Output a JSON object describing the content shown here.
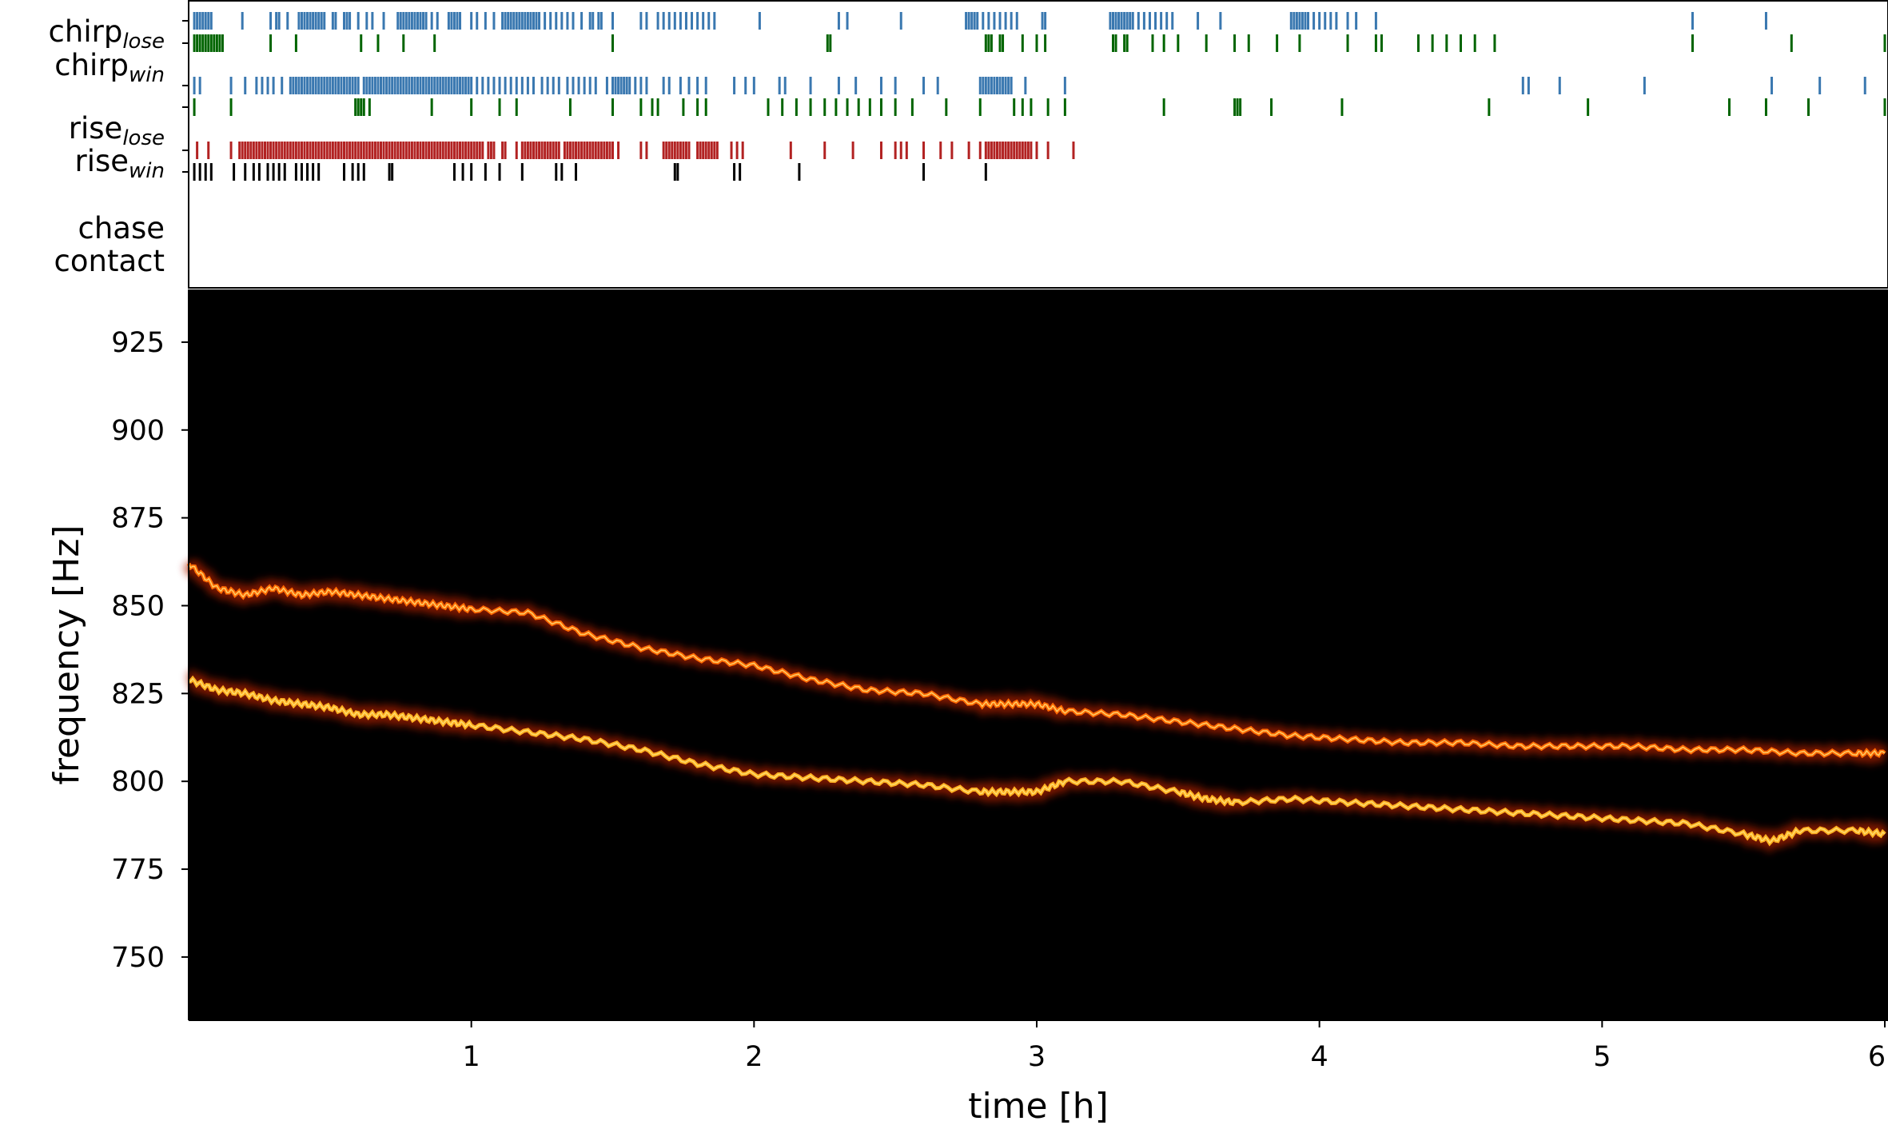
{
  "chart_data": [
    {
      "type": "event-raster",
      "xlim": [
        0,
        6
      ],
      "colors": {
        "chirp_lose": "#3a78b0",
        "chirp_win": "#006400",
        "rise_lose": "#3a78b0",
        "rise_win": "#006400",
        "chase": "#b22222",
        "contact": "#000000"
      },
      "rows": [
        {
          "key": "chirp_lose",
          "label": "chirp",
          "sub": "lose",
          "events": [
            0.02,
            0.03,
            0.04,
            0.05,
            0.06,
            0.07,
            0.08,
            0.19,
            0.29,
            0.31,
            0.32,
            0.35,
            0.39,
            0.4,
            0.41,
            0.42,
            0.43,
            0.44,
            0.45,
            0.46,
            0.47,
            0.48,
            0.51,
            0.52,
            0.55,
            0.56,
            0.57,
            0.6,
            0.63,
            0.65,
            0.69,
            0.74,
            0.75,
            0.76,
            0.77,
            0.78,
            0.79,
            0.8,
            0.81,
            0.82,
            0.83,
            0.84,
            0.86,
            0.88,
            0.92,
            0.93,
            0.94,
            0.95,
            0.96,
            1.0,
            1.02,
            1.05,
            1.08,
            1.11,
            1.12,
            1.13,
            1.14,
            1.15,
            1.16,
            1.17,
            1.18,
            1.19,
            1.2,
            1.21,
            1.22,
            1.23,
            1.24,
            1.26,
            1.28,
            1.3,
            1.32,
            1.34,
            1.36,
            1.39,
            1.42,
            1.43,
            1.45,
            1.46,
            1.5,
            1.6,
            1.62,
            1.66,
            1.68,
            1.7,
            1.72,
            1.74,
            1.76,
            1.78,
            1.8,
            1.82,
            1.84,
            1.86,
            2.02,
            2.3,
            2.33,
            2.52,
            2.75,
            2.76,
            2.77,
            2.78,
            2.79,
            2.81,
            2.83,
            2.85,
            2.87,
            2.89,
            2.91,
            2.93,
            3.02,
            3.03,
            3.26,
            3.27,
            3.28,
            3.29,
            3.3,
            3.31,
            3.32,
            3.33,
            3.34,
            3.36,
            3.38,
            3.4,
            3.42,
            3.44,
            3.46,
            3.48,
            3.57,
            3.65,
            3.9,
            3.91,
            3.92,
            3.93,
            3.94,
            3.95,
            3.96,
            3.98,
            4.0,
            4.02,
            4.04,
            4.06,
            4.1,
            4.13,
            4.2,
            5.32,
            5.58
          ]
        },
        {
          "key": "chirp_win",
          "label": "chirp",
          "sub": "win",
          "events": [
            0.02,
            0.03,
            0.04,
            0.05,
            0.06,
            0.07,
            0.08,
            0.09,
            0.1,
            0.11,
            0.12,
            0.29,
            0.38,
            0.61,
            0.67,
            0.76,
            0.87,
            1.5,
            2.26,
            2.27,
            2.82,
            2.83,
            2.84,
            2.87,
            2.88,
            2.95,
            3.0,
            3.03,
            3.27,
            3.28,
            3.31,
            3.32,
            3.41,
            3.45,
            3.5,
            3.6,
            3.7,
            3.75,
            3.85,
            3.93,
            4.1,
            4.2,
            4.22,
            4.35,
            4.4,
            4.45,
            4.5,
            4.55,
            4.62,
            5.32,
            5.67,
            6.0
          ]
        },
        {
          "key": "rise_lose",
          "label": "rise",
          "sub": "lose",
          "events": [
            0.02,
            0.04,
            0.15,
            0.2,
            0.24,
            0.26,
            0.28,
            0.3,
            0.33,
            0.36,
            0.37,
            0.38,
            0.39,
            0.4,
            0.41,
            0.42,
            0.43,
            0.44,
            0.45,
            0.46,
            0.47,
            0.48,
            0.49,
            0.5,
            0.51,
            0.52,
            0.53,
            0.54,
            0.55,
            0.56,
            0.57,
            0.58,
            0.59,
            0.6,
            0.62,
            0.63,
            0.64,
            0.65,
            0.66,
            0.67,
            0.68,
            0.69,
            0.7,
            0.71,
            0.72,
            0.73,
            0.74,
            0.75,
            0.76,
            0.77,
            0.78,
            0.79,
            0.8,
            0.81,
            0.82,
            0.83,
            0.84,
            0.85,
            0.86,
            0.87,
            0.88,
            0.89,
            0.9,
            0.91,
            0.92,
            0.93,
            0.94,
            0.95,
            0.96,
            0.97,
            0.98,
            0.99,
            1.0,
            1.02,
            1.04,
            1.06,
            1.08,
            1.1,
            1.12,
            1.14,
            1.16,
            1.18,
            1.2,
            1.22,
            1.25,
            1.27,
            1.29,
            1.31,
            1.34,
            1.36,
            1.38,
            1.4,
            1.42,
            1.44,
            1.48,
            1.5,
            1.51,
            1.52,
            1.53,
            1.54,
            1.55,
            1.56,
            1.58,
            1.6,
            1.62,
            1.68,
            1.7,
            1.74,
            1.77,
            1.8,
            1.83,
            1.93,
            1.97,
            2.0,
            2.09,
            2.11,
            2.2,
            2.3,
            2.36,
            2.45,
            2.5,
            2.6,
            2.65,
            2.8,
            2.81,
            2.82,
            2.83,
            2.84,
            2.85,
            2.86,
            2.87,
            2.88,
            2.89,
            2.9,
            2.91,
            2.96,
            3.1,
            4.72,
            4.74,
            4.85,
            5.15,
            5.6,
            5.77,
            5.93
          ]
        },
        {
          "key": "rise_win",
          "label": "rise",
          "sub": "win",
          "events": [
            0.02,
            0.15,
            0.59,
            0.6,
            0.61,
            0.62,
            0.64,
            0.86,
            1.0,
            1.1,
            1.16,
            1.35,
            1.5,
            1.6,
            1.64,
            1.66,
            1.75,
            1.8,
            1.83,
            2.05,
            2.1,
            2.15,
            2.2,
            2.25,
            2.29,
            2.33,
            2.37,
            2.41,
            2.45,
            2.5,
            2.56,
            2.68,
            2.8,
            2.92,
            2.95,
            2.98,
            3.04,
            3.1,
            3.45,
            3.7,
            3.71,
            3.72,
            3.83,
            4.08,
            4.6,
            4.95,
            5.45,
            5.58,
            5.73,
            6.0
          ]
        },
        {
          "key": "chase",
          "label": "chase",
          "sub": "",
          "events": [
            0.03,
            0.07,
            0.15,
            0.18,
            0.19,
            0.2,
            0.21,
            0.22,
            0.23,
            0.24,
            0.25,
            0.26,
            0.27,
            0.28,
            0.29,
            0.3,
            0.31,
            0.32,
            0.33,
            0.34,
            0.35,
            0.36,
            0.37,
            0.38,
            0.39,
            0.4,
            0.41,
            0.42,
            0.43,
            0.44,
            0.45,
            0.46,
            0.47,
            0.48,
            0.49,
            0.5,
            0.51,
            0.52,
            0.53,
            0.54,
            0.55,
            0.56,
            0.57,
            0.58,
            0.59,
            0.6,
            0.61,
            0.62,
            0.63,
            0.64,
            0.65,
            0.66,
            0.67,
            0.68,
            0.69,
            0.7,
            0.71,
            0.72,
            0.73,
            0.74,
            0.75,
            0.76,
            0.77,
            0.78,
            0.79,
            0.8,
            0.81,
            0.82,
            0.83,
            0.84,
            0.85,
            0.86,
            0.87,
            0.88,
            0.89,
            0.9,
            0.91,
            0.92,
            0.93,
            0.94,
            0.95,
            0.96,
            0.97,
            0.98,
            0.99,
            1.0,
            1.01,
            1.02,
            1.03,
            1.04,
            1.06,
            1.07,
            1.08,
            1.11,
            1.12,
            1.16,
            1.18,
            1.19,
            1.2,
            1.21,
            1.22,
            1.23,
            1.24,
            1.25,
            1.26,
            1.27,
            1.28,
            1.29,
            1.3,
            1.31,
            1.33,
            1.34,
            1.35,
            1.36,
            1.37,
            1.38,
            1.39,
            1.4,
            1.41,
            1.42,
            1.43,
            1.44,
            1.45,
            1.46,
            1.47,
            1.48,
            1.49,
            1.5,
            1.52,
            1.6,
            1.62,
            1.68,
            1.69,
            1.7,
            1.71,
            1.72,
            1.73,
            1.74,
            1.75,
            1.76,
            1.77,
            1.8,
            1.81,
            1.82,
            1.83,
            1.84,
            1.85,
            1.86,
            1.87,
            1.92,
            1.94,
            1.96,
            2.13,
            2.25,
            2.35,
            2.45,
            2.5,
            2.52,
            2.54,
            2.6,
            2.66,
            2.7,
            2.76,
            2.8,
            2.82,
            2.83,
            2.84,
            2.85,
            2.86,
            2.87,
            2.88,
            2.89,
            2.9,
            2.91,
            2.92,
            2.93,
            2.94,
            2.95,
            2.96,
            2.97,
            2.98,
            3.0,
            3.04,
            3.13
          ]
        },
        {
          "key": "contact",
          "label": "contact",
          "sub": "",
          "events": [
            0.02,
            0.04,
            0.06,
            0.08,
            0.16,
            0.2,
            0.23,
            0.25,
            0.28,
            0.3,
            0.32,
            0.34,
            0.38,
            0.4,
            0.42,
            0.44,
            0.46,
            0.55,
            0.58,
            0.6,
            0.62,
            0.71,
            0.72,
            0.94,
            0.97,
            1.0,
            1.05,
            1.1,
            1.18,
            1.3,
            1.32,
            1.37,
            1.72,
            1.73,
            1.93,
            1.95,
            2.16,
            2.6,
            2.82
          ]
        }
      ]
    },
    {
      "type": "heatmap",
      "xlabel": "time [h]",
      "ylabel": "frequency [Hz]",
      "xlim": [
        0,
        6
      ],
      "ylim": [
        732,
        940
      ],
      "xticks": [
        "1",
        "2",
        "3",
        "4",
        "5",
        "6"
      ],
      "xtick_values": [
        1,
        2,
        3,
        4,
        5,
        6
      ],
      "yticks": [
        "750",
        "775",
        "800",
        "825",
        "850",
        "875",
        "900",
        "925"
      ],
      "ytick_values": [
        750,
        775,
        800,
        825,
        850,
        875,
        900,
        925
      ],
      "background": "#000000",
      "colormap": [
        "#5a0000",
        "#b22200",
        "#ff6a00",
        "#ffb020",
        "#ffe680"
      ],
      "series": [
        {
          "x": [
            0.0,
            0.1,
            0.2,
            0.3,
            0.4,
            0.5,
            0.6,
            0.7,
            0.8,
            0.9,
            1.0,
            1.2,
            1.4,
            1.6,
            1.8,
            2.0,
            2.2,
            2.4,
            2.6,
            2.8,
            2.9,
            3.0,
            3.1,
            3.3,
            3.5,
            3.7,
            3.9,
            4.1,
            4.3,
            4.5,
            4.7,
            4.9,
            5.1,
            5.3,
            5.5,
            5.7,
            5.9,
            6.0
          ],
          "y": [
            862,
            855,
            853,
            855,
            853,
            854,
            853,
            852,
            851,
            850,
            849,
            848,
            842,
            838,
            835,
            833,
            829,
            826,
            825,
            822,
            822,
            822,
            820,
            819,
            817,
            815,
            813,
            812,
            811,
            811,
            810,
            810,
            810,
            809,
            809,
            808,
            808,
            808
          ]
        },
        {
          "x": [
            0.0,
            0.1,
            0.2,
            0.3,
            0.4,
            0.5,
            0.6,
            0.7,
            0.8,
            0.9,
            1.0,
            1.2,
            1.4,
            1.6,
            1.8,
            2.0,
            2.2,
            2.4,
            2.6,
            2.8,
            2.9,
            3.0,
            3.1,
            3.3,
            3.5,
            3.6,
            3.7,
            3.9,
            4.1,
            4.3,
            4.5,
            4.7,
            4.9,
            5.1,
            5.3,
            5.5,
            5.6,
            5.7,
            5.9,
            6.0
          ],
          "y": [
            829,
            826,
            825,
            823,
            822,
            821,
            819,
            819,
            818,
            817,
            816,
            814,
            812,
            809,
            805,
            802,
            801,
            800,
            799,
            797,
            797,
            797,
            800,
            800,
            797,
            795,
            794,
            795,
            794,
            793,
            792,
            791,
            790,
            789,
            788,
            785,
            783,
            786,
            786,
            785
          ]
        }
      ]
    }
  ]
}
